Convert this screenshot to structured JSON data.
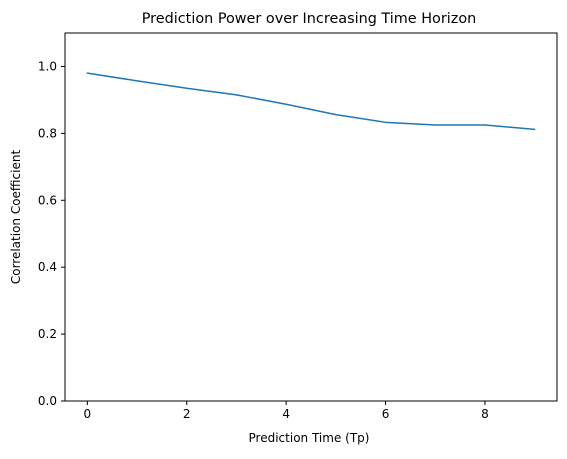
{
  "chart_data": {
    "type": "line",
    "title": "Prediction Power over Increasing Time Horizon",
    "xlabel": "Prediction Time (Tp)",
    "ylabel": "Correlation Coefficient",
    "xlim": [
      -0.45,
      9.45
    ],
    "ylim": [
      0.0,
      1.1
    ],
    "xticks": [
      0,
      2,
      4,
      6,
      8
    ],
    "xtick_labels": [
      "0",
      "2",
      "4",
      "6",
      "8"
    ],
    "yticks": [
      0.0,
      0.2,
      0.4,
      0.6,
      0.8,
      1.0
    ],
    "ytick_labels": [
      "0.0",
      "0.2",
      "0.4",
      "0.6",
      "0.8",
      "1.0"
    ],
    "grid": false,
    "legend": "none",
    "series": [
      {
        "color": "#1f77b4",
        "x": [
          0,
          1,
          2,
          3,
          4,
          5,
          6,
          7,
          8,
          9
        ],
        "y": [
          0.98,
          0.957,
          0.935,
          0.915,
          0.887,
          0.856,
          0.833,
          0.825,
          0.825,
          0.812
        ]
      }
    ]
  }
}
